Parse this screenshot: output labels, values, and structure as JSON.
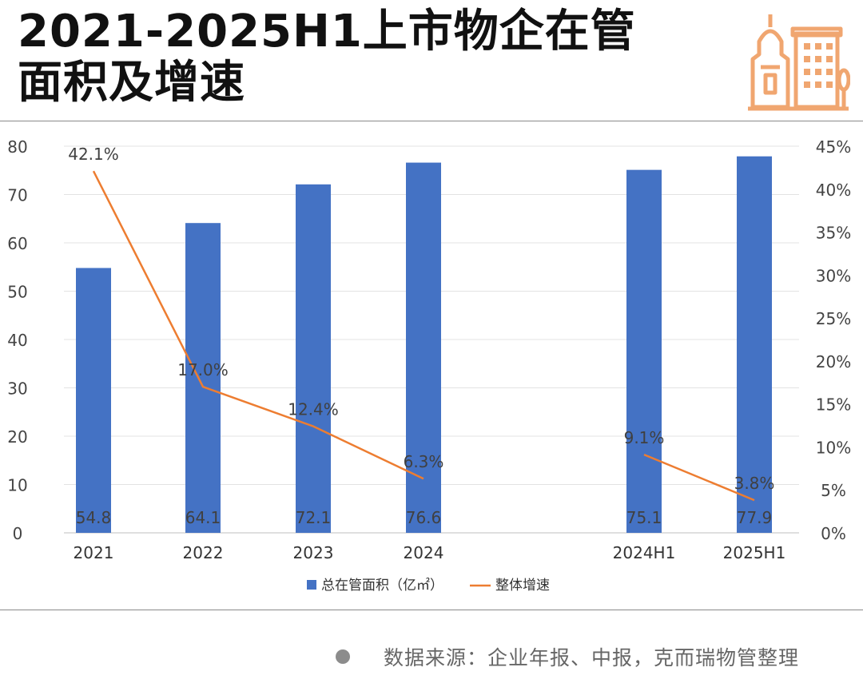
{
  "header": {
    "title_line1": "2021-2025H1上市物企在管",
    "title_line2": "面积及增速",
    "logo_icon": "city-buildings-icon"
  },
  "colors": {
    "bar": "#4472c4",
    "line": "#ed7d31",
    "logo": "#f0a670",
    "grid": "#e3e3e3",
    "axis": "#bfbfbf"
  },
  "chart_data": {
    "type": "bar",
    "title": "2021-2025H1上市物企在管面积及增速",
    "categories": [
      "2021",
      "2022",
      "2023",
      "2024",
      "",
      "2024H1",
      "2025H1"
    ],
    "series": [
      {
        "name": "总在管面积（亿㎡）",
        "type": "bar",
        "axis": "left",
        "values": [
          54.8,
          64.1,
          72.1,
          76.6,
          null,
          75.1,
          77.9
        ],
        "labels": [
          "54.8",
          "64.1",
          "72.1",
          "76.6",
          "",
          "75.1",
          "77.9"
        ]
      },
      {
        "name": "整体增速",
        "type": "line",
        "axis": "right",
        "values": [
          42.1,
          17.0,
          12.4,
          6.3,
          null,
          9.1,
          3.8
        ],
        "labels": [
          "42.1%",
          "17.0%",
          "12.4%",
          "6.3%",
          "",
          "9.1%",
          "3.8%"
        ]
      }
    ],
    "y_left": {
      "min": 0,
      "max": 80,
      "ticks": [
        "0",
        "10",
        "20",
        "30",
        "40",
        "50",
        "60",
        "70",
        "80"
      ]
    },
    "y_right": {
      "min": 0,
      "max": 45,
      "ticks": [
        "0%",
        "5%",
        "10%",
        "15%",
        "20%",
        "25%",
        "30%",
        "35%",
        "40%",
        "45%"
      ]
    },
    "legend": [
      {
        "name": "总在管面积（亿㎡）",
        "kind": "bar"
      },
      {
        "name": "整体增速",
        "kind": "line"
      }
    ],
    "legend_position": "bottom",
    "grid": true
  },
  "footer": {
    "source": "数据来源：企业年报、中报，克而瑞物管整理"
  }
}
